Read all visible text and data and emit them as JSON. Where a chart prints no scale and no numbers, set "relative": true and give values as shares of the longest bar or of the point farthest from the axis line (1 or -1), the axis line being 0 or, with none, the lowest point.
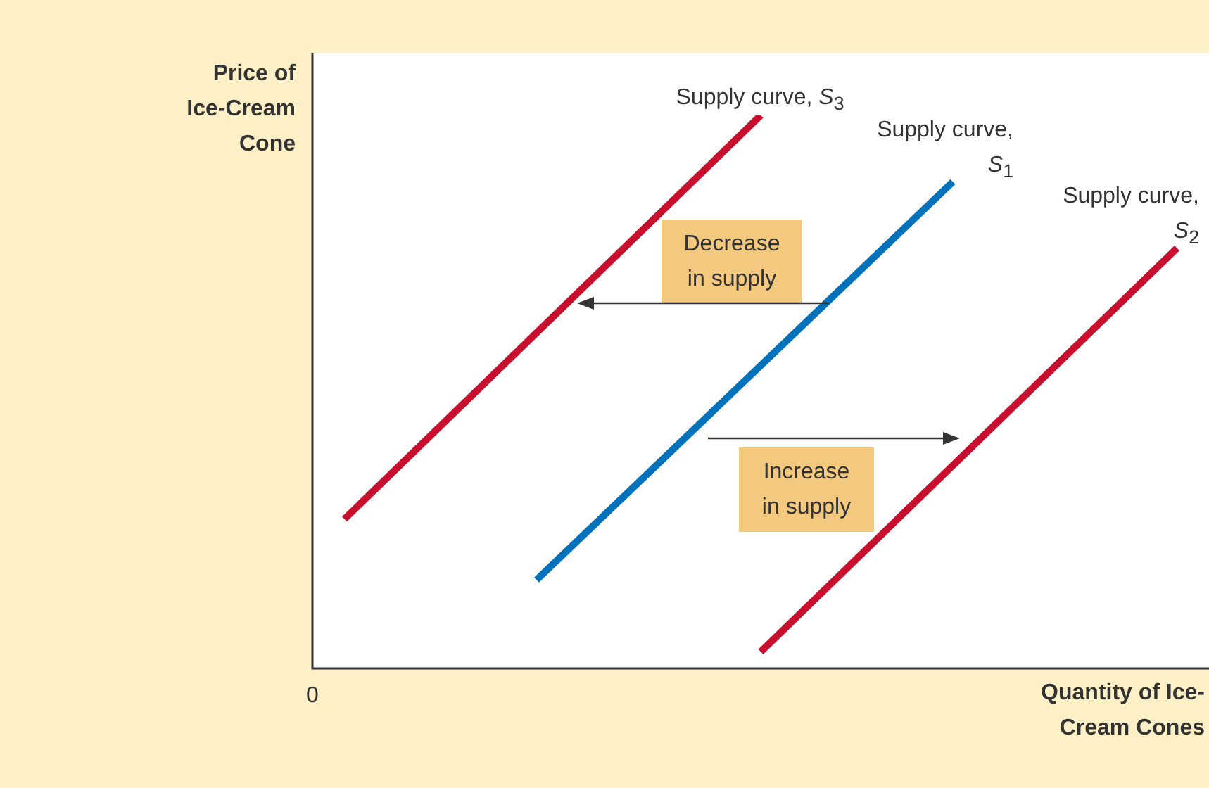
{
  "chart_data": {
    "type": "line",
    "xlabel": "Quantity of Ice-Cream Cones",
    "ylabel": "Price of Ice-Cream Cone",
    "relative": true,
    "marker": "none",
    "categories": [
      null,
      null,
      null,
      null,
      null,
      null,
      null,
      null,
      null,
      null,
      null,
      null,
      null,
      null,
      null,
      null,
      null,
      null,
      null,
      null,
      null,
      null,
      null,
      null,
      null,
      null,
      null,
      null,
      null
    ],
    "series": [
      {
        "name": "Supply curve, S$_{3}$",
        "color": "#c8102e",
        "values": [
          null,
          0.27,
          null,
          null,
          null,
          null,
          null,
          null,
          null,
          null,
          null,
          null,
          null,
          null,
          1,
          null,
          null,
          null,
          null,
          null,
          null,
          null,
          null,
          null,
          null,
          null,
          null,
          null,
          null
        ]
      },
      {
        "name": "Supply curve, S$_{1}$",
        "color": "#0072bc",
        "values": [
          null,
          null,
          null,
          null,
          null,
          null,
          null,
          0.16,
          null,
          null,
          null,
          null,
          null,
          null,
          null,
          null,
          null,
          null,
          null,
          null,
          0.88,
          null,
          null,
          null,
          null,
          null,
          null,
          null,
          null
        ]
      },
      {
        "name": "Supply curve, S$_{2}$",
        "color": "#c8102e",
        "values": [
          null,
          null,
          null,
          null,
          null,
          null,
          null,
          null,
          null,
          null,
          null,
          null,
          null,
          null,
          0.03,
          null,
          null,
          null,
          null,
          null,
          null,
          null,
          null,
          null,
          null,
          null,
          null,
          0.76,
          null
        ]
      }
    ],
    "annotations": [
      "0",
      "Decrease in supply",
      "Increase in supply"
    ]
  }
}
